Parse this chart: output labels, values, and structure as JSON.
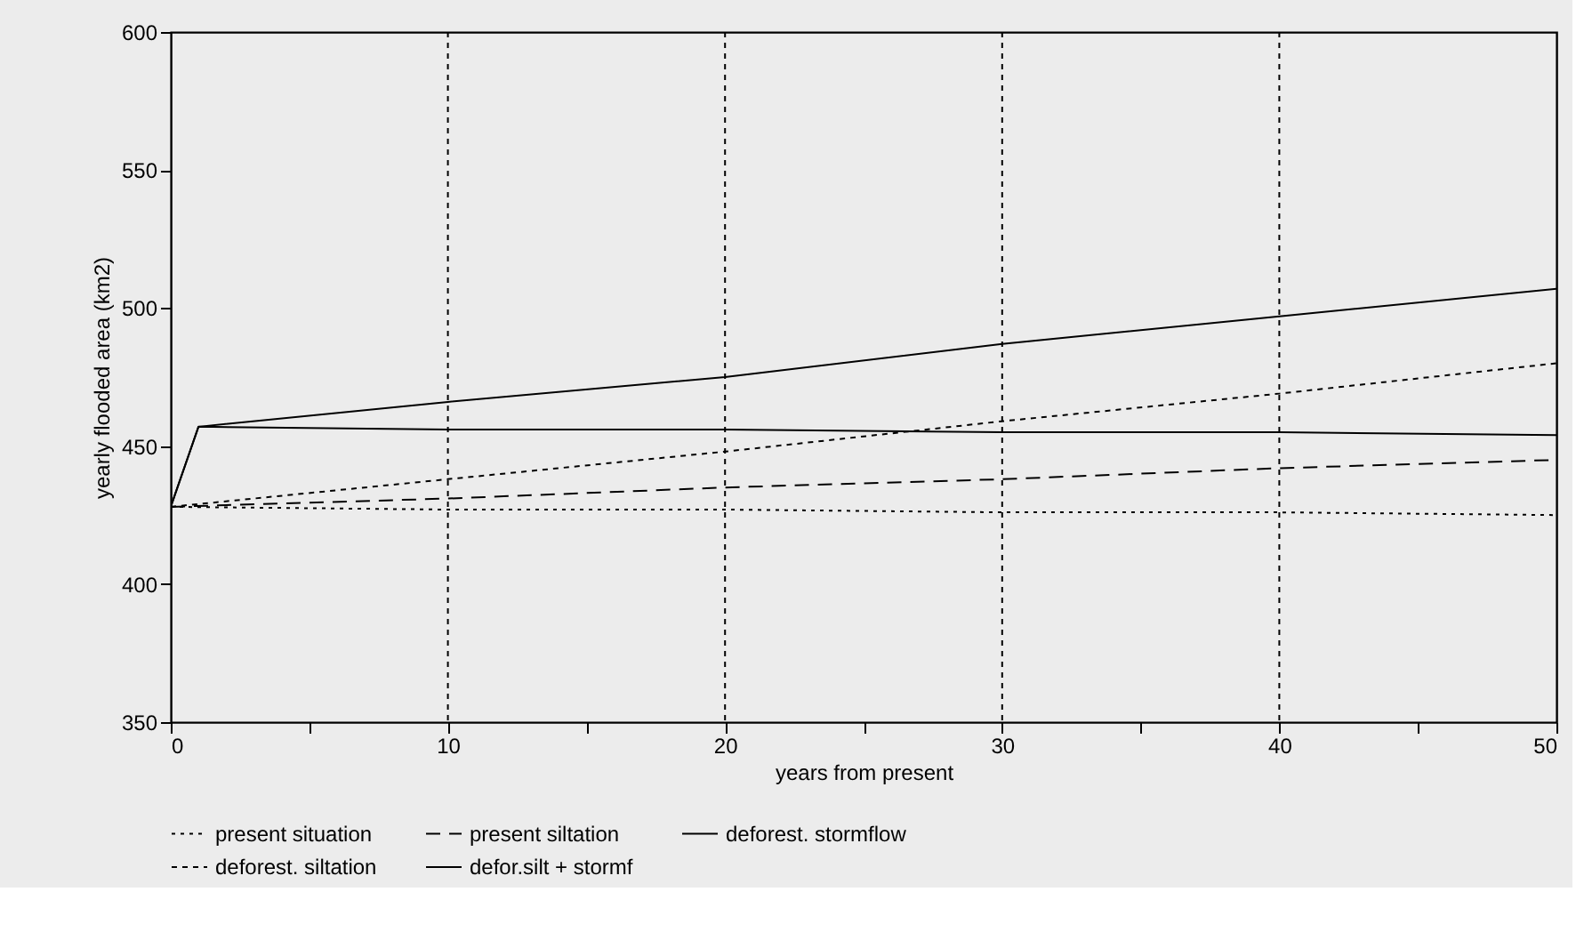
{
  "chart_data": {
    "type": "line",
    "xlabel": "years from present",
    "ylabel": "yearly flooded area (km2)",
    "xlim": [
      0,
      50
    ],
    "ylim": [
      350,
      600
    ],
    "xticks": [
      0,
      {
        "value": 5,
        "label": null
      },
      10,
      {
        "value": 15,
        "label": null
      },
      20,
      {
        "value": 25,
        "label": null
      },
      30,
      {
        "value": 35,
        "label": null
      },
      40,
      {
        "value": 45,
        "label": null
      },
      50
    ],
    "yticks": [
      350,
      400,
      450,
      500,
      550,
      600
    ],
    "grid": "x",
    "legend": "bottom",
    "series": [
      {
        "name": "present situation",
        "color": "#000000",
        "line_style": "dotted",
        "x": [
          0,
          10,
          20,
          30,
          40,
          50
        ],
        "values": [
          428,
          427,
          427,
          426,
          426,
          425
        ]
      },
      {
        "name": "present siltation",
        "color": "#000000",
        "line_style": "dashed",
        "x": [
          0,
          10,
          20,
          30,
          40,
          50
        ],
        "values": [
          428,
          431,
          435,
          438,
          442,
          445
        ]
      },
      {
        "name": "deforest. stormflow",
        "color": "#000000",
        "line_style": "solid",
        "x": [
          0,
          1,
          10,
          20,
          30,
          40,
          50
        ],
        "values": [
          428,
          457,
          456,
          456,
          455,
          455,
          454
        ]
      },
      {
        "name": "deforest. siltation",
        "color": "#000000",
        "line_style": "dotted",
        "x": [
          0,
          10,
          20,
          30,
          40,
          50
        ],
        "values": [
          428,
          438,
          448,
          459,
          469,
          480
        ]
      },
      {
        "name": "defor.silt + stormf",
        "color": "#000000",
        "line_style": "solid",
        "x": [
          0,
          1,
          10,
          20,
          30,
          40,
          50
        ],
        "values": [
          428,
          457,
          466,
          475,
          487,
          497,
          507
        ]
      }
    ]
  }
}
